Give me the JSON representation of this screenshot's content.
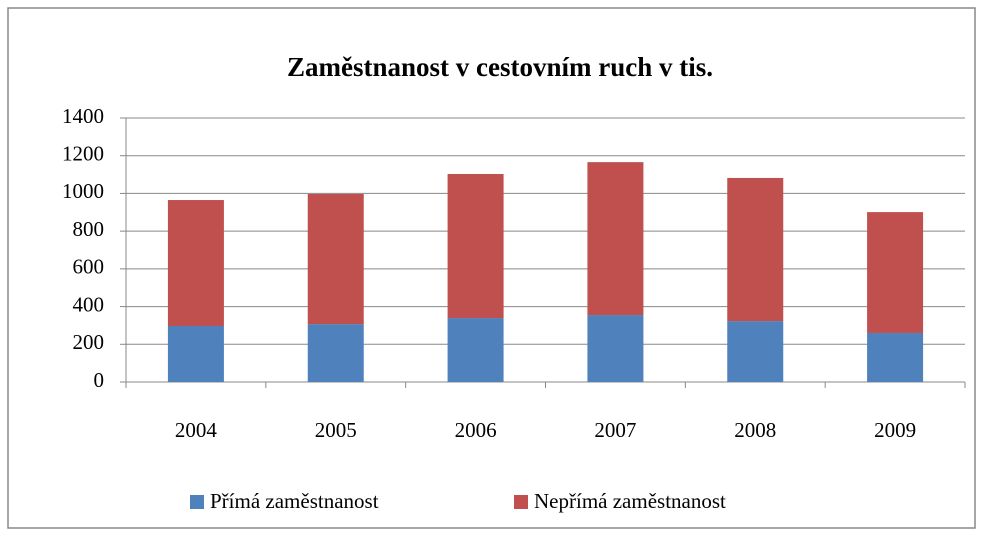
{
  "chart_data": {
    "type": "stacked_bar",
    "title": "Zaměstnanost v cestovním ruch v tis.",
    "categories": [
      "2004",
      "2005",
      "2006",
      "2007",
      "2008",
      "2009"
    ],
    "series": [
      {
        "name": "Přímá zaměstnanost",
        "color": "#4f81bd",
        "values": [
          297,
          307,
          339,
          355,
          323,
          260
        ]
      },
      {
        "name": "Nepřímá zaměstnanost",
        "color": "#c0504d",
        "values": [
          668,
          690,
          764,
          811,
          759,
          641
        ]
      }
    ],
    "ylim": [
      0,
      1400
    ],
    "yticks": [
      0,
      200,
      400,
      600,
      800,
      1000,
      1200,
      1400
    ],
    "grid": true,
    "legend": "bottom"
  }
}
